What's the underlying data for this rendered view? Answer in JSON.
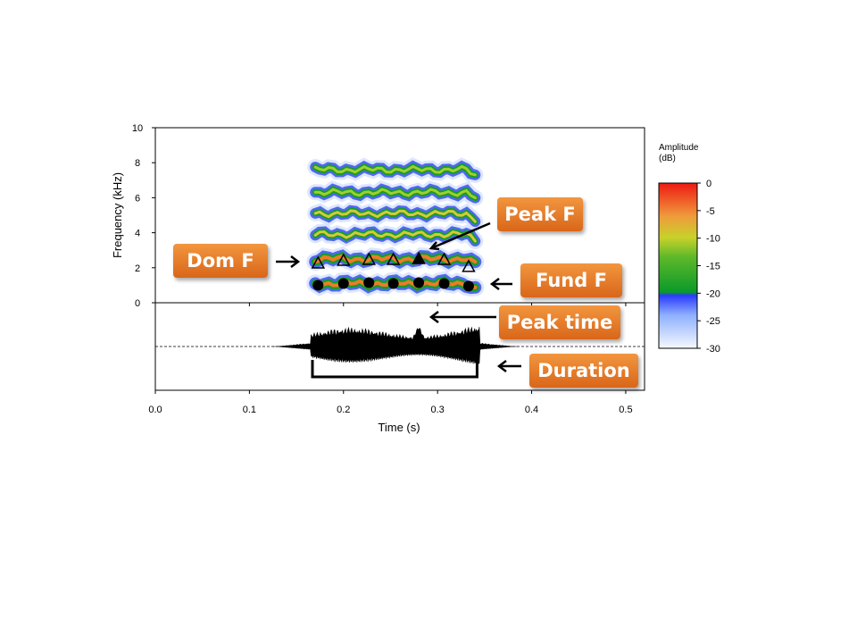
{
  "chart_data": {
    "type": "spectrogram",
    "xlabel": "Time (s)",
    "ylabel": "Frequency (kHz)",
    "xlim": [
      0.0,
      0.52
    ],
    "ylim": [
      0,
      10
    ],
    "x_ticks": [
      "0.0",
      "0.1",
      "0.2",
      "0.3",
      "0.4",
      "0.5"
    ],
    "x_tick_values": [
      0.0,
      0.1,
      0.2,
      0.3,
      0.4,
      0.5
    ],
    "y_ticks": [
      "0",
      "2",
      "4",
      "6",
      "8",
      "10"
    ],
    "y_tick_values": [
      0,
      2,
      4,
      6,
      8,
      10
    ],
    "colorbar": {
      "title": "Amplitude\n(dB)",
      "range": [
        -30,
        0
      ],
      "ticks": [
        "0",
        "-5",
        "-10",
        "-15",
        "-20",
        "-25",
        "-30"
      ],
      "tick_values": [
        0,
        -5,
        -10,
        -15,
        -20,
        -25,
        -30
      ],
      "colors": [
        "#f5f9ff",
        "#8fb0ff",
        "#2a3aff",
        "#0b9a2a",
        "#c8d22a",
        "#f09a3c",
        "#ee1a12"
      ]
    },
    "harmonics": [
      {
        "freq": 1.1
      },
      {
        "freq": 2.5
      },
      {
        "freq": 3.9
      },
      {
        "freq": 5.1
      },
      {
        "freq": 6.3
      },
      {
        "freq": 7.6
      }
    ],
    "sound_window": [
      0.17,
      0.34
    ],
    "fund_f_points": {
      "x": [
        0.173,
        0.2,
        0.227,
        0.253,
        0.28,
        0.307,
        0.333
      ],
      "y": [
        1.1,
        1.2,
        1.25,
        1.2,
        1.25,
        1.2,
        1.05
      ]
    },
    "dom_f_points": {
      "x": [
        0.173,
        0.2,
        0.227,
        0.253,
        0.28,
        0.307,
        0.333
      ],
      "y": [
        2.4,
        2.55,
        2.6,
        2.6,
        2.65,
        2.6,
        2.2
      ]
    },
    "peak_f": {
      "x": 0.28,
      "y": 2.65
    },
    "peak_time": 0.28,
    "duration": [
      0.167,
      0.342
    ],
    "annotations": [
      {
        "key": "dom_f",
        "text": "Dom F"
      },
      {
        "key": "peak_f",
        "text": "Peak F"
      },
      {
        "key": "fund_f",
        "text": "Fund F"
      },
      {
        "key": "peak_time",
        "text": "Peak time"
      },
      {
        "key": "duration",
        "text": "Duration"
      }
    ]
  },
  "labels": {
    "dom_f": "Dom F",
    "peak_f": "Peak F",
    "fund_f": "Fund F",
    "peak_time": "Peak time",
    "duration": "Duration"
  },
  "colors": {
    "label_bg_top": "#f2963e",
    "label_bg_bottom": "#d9661a",
    "label_text": "#ffffff",
    "axis": "#000000"
  }
}
